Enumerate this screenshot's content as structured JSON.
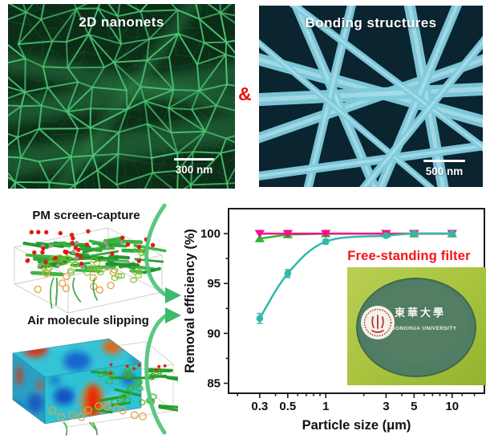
{
  "figure": {
    "nanonets": {
      "title": "2D nanonets",
      "scale_bar": "300 nm"
    },
    "bonding": {
      "title": "Bonding structures",
      "scale_bar": "500 nm"
    },
    "ampersand": "&",
    "pm_capture_label": "PM screen-capture",
    "air_slipping_label": "Air molecule slipping",
    "inset": {
      "label": "Free-standing filter",
      "logo_cn": "東華大學",
      "logo_en": "DONGHUA UNIVERSITY"
    },
    "colors": {
      "sem_net_green": "#4cc473",
      "sem_fiber_cyan": "#7fccdd",
      "ampersand_red": "#ea130b",
      "arrow_green": "#53c47c",
      "series_teal": "#2fb9ab",
      "series_green": "#2eb82e",
      "series_magenta": "#fb0d8d",
      "inset_label_red": "#f51212",
      "filter_disc_green": "#4f7d63",
      "photo_bg_green": "#a9c43f"
    }
  },
  "chart_data": {
    "type": "line",
    "x": [
      0.3,
      0.5,
      1,
      3,
      5,
      10
    ],
    "x_scale": "log",
    "xlabel": "Particle size (μm)",
    "ylabel": "Removal efficiency (%)",
    "xticks": [
      0.3,
      0.5,
      1,
      3,
      5,
      10
    ],
    "yticks": [
      85,
      90,
      95,
      100
    ],
    "xlim": [
      0.17,
      18
    ],
    "ylim": [
      84,
      102.5
    ],
    "grid": false,
    "legend": "none",
    "annotation": "Free-standing filter",
    "series": [
      {
        "name": "series-green-triangle",
        "marker": "triangle-up",
        "color": "#2eb82e",
        "values": [
          99.5,
          99.9,
          100,
          100,
          100,
          100
        ],
        "smooth": false
      },
      {
        "name": "series-magenta-triangle",
        "marker": "triangle-down",
        "color": "#fb0d8d",
        "values": [
          100,
          100,
          100,
          100,
          100,
          100
        ],
        "smooth": false
      },
      {
        "name": "series-teal-circle",
        "marker": "circle",
        "color": "#2fb9ab",
        "values": [
          91.5,
          96.0,
          99.2,
          99.8,
          100,
          100
        ],
        "error": [
          0.5,
          0.4,
          0.25,
          0.15,
          0.1,
          0.08
        ],
        "smooth": true
      }
    ]
  }
}
